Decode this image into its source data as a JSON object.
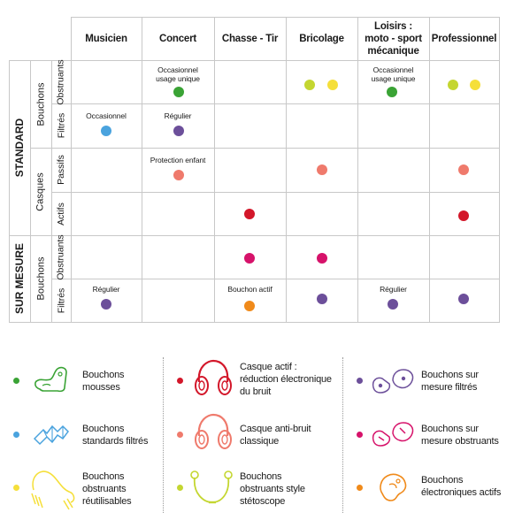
{
  "columns": [
    "Musicien",
    "Concert",
    "Chasse - Tir",
    "Bricolage",
    "Loisirs :\nmoto - sport\nmécanique",
    "Professionnel"
  ],
  "groups": [
    "STANDARD",
    "SUR MESURE"
  ],
  "sub_groups": [
    "Bouchons",
    "Casques",
    "Bouchons"
  ],
  "row_types": [
    "Obstruants",
    "Filtrés",
    "Passifs",
    "Actifs",
    "Obstruants",
    "Filtrés"
  ],
  "notes": {
    "r0c1": "Occasionnel\nusage unique",
    "r0c4": "Occasionnel\nusage unique",
    "r1c0": "Occasionnel",
    "r1c1": "Régulier",
    "r2c1": "Protection enfant",
    "r5c0": "Régulier",
    "r5c2": "Bouchon actif",
    "r5c4": "Régulier"
  },
  "colors": {
    "green": "#3aa335",
    "yellow_green": "#c4d631",
    "yellow": "#f5df3a",
    "blue": "#4aa3de",
    "purple": "#6c4f9a",
    "salmon": "#ef7a6c",
    "red": "#d3172a",
    "magenta": "#d6126a",
    "orange": "#f08a1a"
  },
  "legend": [
    {
      "text": "Bouchons\nmousses",
      "color": "green",
      "icon": "foam-earplug-icon"
    },
    {
      "text": "Casque actif :\nréduction électronique\ndu bruit",
      "color": "red",
      "icon": "active-headset-icon"
    },
    {
      "text": "Bouchons sur\nmesure filtrés",
      "color": "purple",
      "icon": "custom-filtered-earplug-icon"
    },
    {
      "text": "Bouchons\nstandards filtrés",
      "color": "blue",
      "icon": "filtered-earplug-icon"
    },
    {
      "text": "Casque anti-bruit\nclassique",
      "color": "salmon",
      "icon": "passive-headset-icon"
    },
    {
      "text": "Bouchons sur\nmesure obstruants",
      "color": "magenta",
      "icon": "custom-obstructing-earplug-icon"
    },
    {
      "text": "Bouchons\nobstruants\nréutilisables",
      "color": "yellow",
      "icon": "reusable-earplug-icon"
    },
    {
      "text": "Bouchons\nobstruants style\nstétoscope",
      "color": "yellow_green",
      "icon": "stethoscope-earplug-icon"
    },
    {
      "text": "Bouchons\nélectroniques actifs",
      "color": "orange",
      "icon": "electronic-earplug-icon"
    }
  ]
}
